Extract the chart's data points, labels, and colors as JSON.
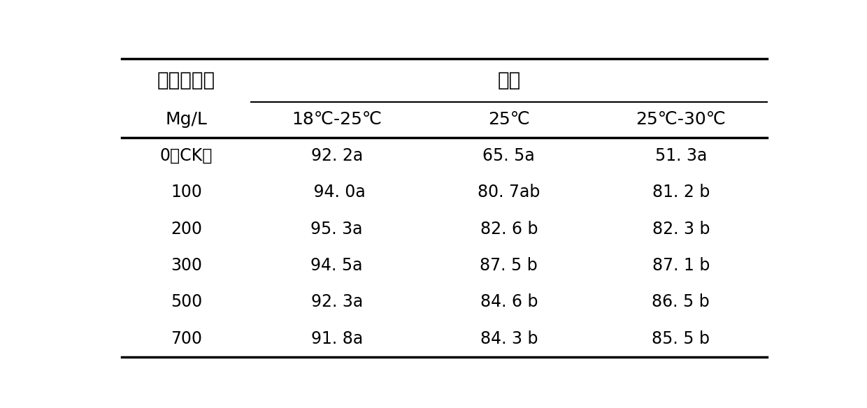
{
  "col0_header_top": "赤霞素浓度",
  "col0_header_bottom": "Mg/L",
  "span_header": "温度",
  "col_headers": [
    "18℃-25℃",
    "25℃",
    "25℃-30℃"
  ],
  "row_labels": [
    "0（CK）",
    "100",
    "200",
    "300",
    "500",
    "700"
  ],
  "data": [
    [
      "92. 2a",
      "65. 5a",
      "51. 3a"
    ],
    [
      " 94. 0a",
      "80. 7ab",
      "81. 2 b"
    ],
    [
      "95. 3a",
      "82. 6 b",
      "82. 3 b"
    ],
    [
      "94. 5a",
      "87. 5 b",
      "87. 1 b"
    ],
    [
      "92. 3a",
      "84. 6 b",
      "86. 5 b"
    ],
    [
      "91. 8a",
      "84. 3 b",
      "85. 5 b"
    ]
  ],
  "bg_color": "#ffffff",
  "text_color": "#000000",
  "line_color": "#000000",
  "font_size": 17,
  "header_font_size": 18,
  "chinese_font_size": 20
}
